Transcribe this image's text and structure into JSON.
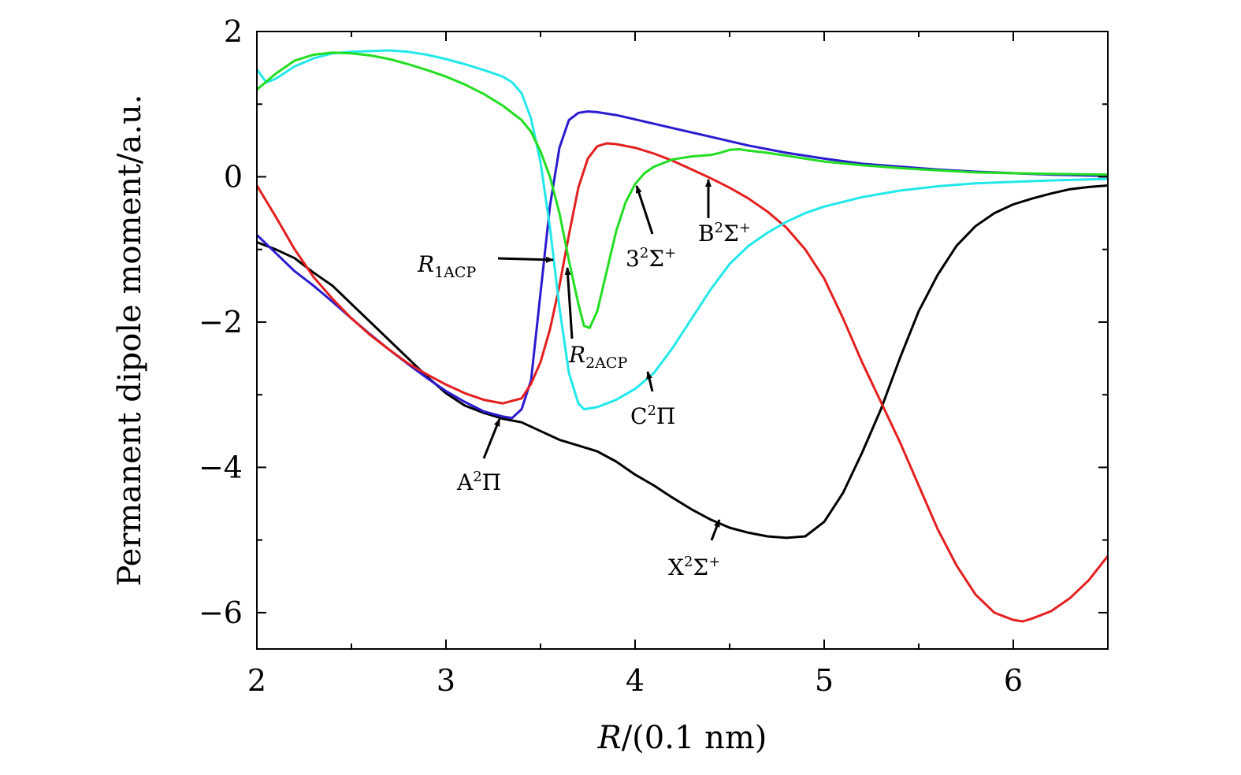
{
  "chart_data": {
    "type": "line",
    "title": "",
    "xlabel_var": "R",
    "xlabel_unit": "/(0.1 nm)",
    "ylabel": "Permanent dipole moment/a.u.",
    "xlim": [
      2,
      6.5
    ],
    "ylim": [
      -6.5,
      2
    ],
    "x_ticks": [
      "2",
      "3",
      "4",
      "5",
      "6"
    ],
    "y_ticks": [
      "2",
      "0",
      "−2",
      "−4",
      "−6"
    ],
    "grid": false,
    "legend": "none",
    "series": [
      {
        "name": "X²Σ⁺",
        "color": "#000000",
        "points": [
          [
            2.0,
            -0.9
          ],
          [
            2.1,
            -1.0
          ],
          [
            2.2,
            -1.12
          ],
          [
            2.3,
            -1.32
          ],
          [
            2.4,
            -1.5
          ],
          [
            2.5,
            -1.75
          ],
          [
            2.6,
            -2.0
          ],
          [
            2.7,
            -2.25
          ],
          [
            2.8,
            -2.5
          ],
          [
            2.9,
            -2.75
          ],
          [
            3.0,
            -2.98
          ],
          [
            3.1,
            -3.15
          ],
          [
            3.2,
            -3.25
          ],
          [
            3.3,
            -3.33
          ],
          [
            3.4,
            -3.38
          ],
          [
            3.5,
            -3.5
          ],
          [
            3.6,
            -3.62
          ],
          [
            3.7,
            -3.7
          ],
          [
            3.8,
            -3.78
          ],
          [
            3.9,
            -3.92
          ],
          [
            4.0,
            -4.1
          ],
          [
            4.1,
            -4.25
          ],
          [
            4.2,
            -4.42
          ],
          [
            4.3,
            -4.58
          ],
          [
            4.4,
            -4.72
          ],
          [
            4.5,
            -4.83
          ],
          [
            4.6,
            -4.9
          ],
          [
            4.7,
            -4.95
          ],
          [
            4.8,
            -4.97
          ],
          [
            4.9,
            -4.95
          ],
          [
            5.0,
            -4.75
          ],
          [
            5.1,
            -4.35
          ],
          [
            5.2,
            -3.8
          ],
          [
            5.3,
            -3.2
          ],
          [
            5.4,
            -2.5
          ],
          [
            5.5,
            -1.85
          ],
          [
            5.6,
            -1.35
          ],
          [
            5.7,
            -0.95
          ],
          [
            5.8,
            -0.68
          ],
          [
            5.9,
            -0.5
          ],
          [
            6.0,
            -0.38
          ],
          [
            6.1,
            -0.3
          ],
          [
            6.2,
            -0.23
          ],
          [
            6.3,
            -0.17
          ],
          [
            6.4,
            -0.14
          ],
          [
            6.5,
            -0.12
          ]
        ]
      },
      {
        "name": "A²Π",
        "color": "#2a1bd0",
        "points": [
          [
            2.0,
            -0.8
          ],
          [
            2.1,
            -1.05
          ],
          [
            2.2,
            -1.3
          ],
          [
            2.3,
            -1.5
          ],
          [
            2.4,
            -1.72
          ],
          [
            2.5,
            -1.95
          ],
          [
            2.6,
            -2.17
          ],
          [
            2.7,
            -2.38
          ],
          [
            2.8,
            -2.58
          ],
          [
            2.9,
            -2.77
          ],
          [
            3.0,
            -2.95
          ],
          [
            3.1,
            -3.1
          ],
          [
            3.2,
            -3.23
          ],
          [
            3.3,
            -3.3
          ],
          [
            3.35,
            -3.32
          ],
          [
            3.4,
            -3.2
          ],
          [
            3.45,
            -2.8
          ],
          [
            3.5,
            -1.6
          ],
          [
            3.55,
            -0.4
          ],
          [
            3.6,
            0.4
          ],
          [
            3.65,
            0.78
          ],
          [
            3.7,
            0.88
          ],
          [
            3.75,
            0.9
          ],
          [
            3.8,
            0.89
          ],
          [
            3.9,
            0.85
          ],
          [
            4.0,
            0.79
          ],
          [
            4.2,
            0.67
          ],
          [
            4.4,
            0.55
          ],
          [
            4.6,
            0.43
          ],
          [
            4.8,
            0.33
          ],
          [
            5.0,
            0.25
          ],
          [
            5.2,
            0.18
          ],
          [
            5.4,
            0.14
          ],
          [
            5.6,
            0.1
          ],
          [
            5.8,
            0.07
          ],
          [
            6.0,
            0.05
          ],
          [
            6.2,
            0.03
          ],
          [
            6.5,
            0.01
          ]
        ]
      },
      {
        "name": "B²Σ⁺",
        "color": "#e41f1f",
        "points": [
          [
            2.0,
            -0.12
          ],
          [
            2.1,
            -0.55
          ],
          [
            2.2,
            -1.0
          ],
          [
            2.3,
            -1.38
          ],
          [
            2.4,
            -1.68
          ],
          [
            2.5,
            -1.95
          ],
          [
            2.6,
            -2.18
          ],
          [
            2.7,
            -2.38
          ],
          [
            2.8,
            -2.57
          ],
          [
            2.9,
            -2.72
          ],
          [
            3.0,
            -2.86
          ],
          [
            3.1,
            -2.98
          ],
          [
            3.2,
            -3.07
          ],
          [
            3.3,
            -3.12
          ],
          [
            3.4,
            -3.05
          ],
          [
            3.45,
            -2.85
          ],
          [
            3.5,
            -2.55
          ],
          [
            3.55,
            -2.1
          ],
          [
            3.6,
            -1.5
          ],
          [
            3.65,
            -0.8
          ],
          [
            3.7,
            -0.15
          ],
          [
            3.75,
            0.25
          ],
          [
            3.8,
            0.42
          ],
          [
            3.85,
            0.46
          ],
          [
            3.9,
            0.45
          ],
          [
            4.0,
            0.4
          ],
          [
            4.1,
            0.32
          ],
          [
            4.2,
            0.22
          ],
          [
            4.3,
            0.1
          ],
          [
            4.4,
            -0.02
          ],
          [
            4.5,
            -0.15
          ],
          [
            4.6,
            -0.3
          ],
          [
            4.7,
            -0.48
          ],
          [
            4.8,
            -0.7
          ],
          [
            4.9,
            -1.0
          ],
          [
            5.0,
            -1.4
          ],
          [
            5.1,
            -1.95
          ],
          [
            5.2,
            -2.55
          ],
          [
            5.3,
            -3.1
          ],
          [
            5.4,
            -3.65
          ],
          [
            5.5,
            -4.25
          ],
          [
            5.6,
            -4.85
          ],
          [
            5.7,
            -5.35
          ],
          [
            5.8,
            -5.75
          ],
          [
            5.9,
            -6.0
          ],
          [
            6.0,
            -6.1
          ],
          [
            6.05,
            -6.12
          ],
          [
            6.1,
            -6.08
          ],
          [
            6.2,
            -5.98
          ],
          [
            6.3,
            -5.8
          ],
          [
            6.4,
            -5.55
          ],
          [
            6.5,
            -5.22
          ]
        ]
      },
      {
        "name": "C²Π",
        "color": "#22e8ea",
        "points": [
          [
            2.0,
            1.48
          ],
          [
            2.05,
            1.3
          ],
          [
            2.1,
            1.35
          ],
          [
            2.2,
            1.52
          ],
          [
            2.3,
            1.63
          ],
          [
            2.4,
            1.7
          ],
          [
            2.5,
            1.72
          ],
          [
            2.6,
            1.73
          ],
          [
            2.7,
            1.74
          ],
          [
            2.8,
            1.72
          ],
          [
            2.9,
            1.68
          ],
          [
            3.0,
            1.62
          ],
          [
            3.1,
            1.55
          ],
          [
            3.2,
            1.47
          ],
          [
            3.3,
            1.38
          ],
          [
            3.35,
            1.3
          ],
          [
            3.4,
            1.15
          ],
          [
            3.45,
            0.8
          ],
          [
            3.5,
            0.2
          ],
          [
            3.55,
            -0.7
          ],
          [
            3.6,
            -1.8
          ],
          [
            3.65,
            -2.7
          ],
          [
            3.7,
            -3.12
          ],
          [
            3.73,
            -3.2
          ],
          [
            3.8,
            -3.17
          ],
          [
            3.9,
            -3.07
          ],
          [
            4.0,
            -2.92
          ],
          [
            4.1,
            -2.7
          ],
          [
            4.2,
            -2.35
          ],
          [
            4.3,
            -1.95
          ],
          [
            4.4,
            -1.55
          ],
          [
            4.5,
            -1.2
          ],
          [
            4.6,
            -0.95
          ],
          [
            4.7,
            -0.77
          ],
          [
            4.8,
            -0.62
          ],
          [
            4.9,
            -0.5
          ],
          [
            5.0,
            -0.41
          ],
          [
            5.2,
            -0.28
          ],
          [
            5.4,
            -0.19
          ],
          [
            5.6,
            -0.13
          ],
          [
            5.8,
            -0.09
          ],
          [
            6.0,
            -0.07
          ],
          [
            6.2,
            -0.05
          ],
          [
            6.5,
            -0.03
          ]
        ]
      },
      {
        "name": "3²Σ⁺",
        "color": "#22de22",
        "points": [
          [
            2.0,
            1.2
          ],
          [
            2.1,
            1.42
          ],
          [
            2.2,
            1.6
          ],
          [
            2.3,
            1.68
          ],
          [
            2.4,
            1.71
          ],
          [
            2.5,
            1.7
          ],
          [
            2.6,
            1.67
          ],
          [
            2.7,
            1.62
          ],
          [
            2.8,
            1.55
          ],
          [
            2.9,
            1.47
          ],
          [
            3.0,
            1.38
          ],
          [
            3.1,
            1.27
          ],
          [
            3.2,
            1.14
          ],
          [
            3.3,
            0.98
          ],
          [
            3.4,
            0.78
          ],
          [
            3.45,
            0.62
          ],
          [
            3.5,
            0.35
          ],
          [
            3.55,
            0.0
          ],
          [
            3.6,
            -0.5
          ],
          [
            3.65,
            -1.15
          ],
          [
            3.7,
            -1.75
          ],
          [
            3.73,
            -2.05
          ],
          [
            3.76,
            -2.08
          ],
          [
            3.8,
            -1.85
          ],
          [
            3.85,
            -1.3
          ],
          [
            3.9,
            -0.75
          ],
          [
            3.95,
            -0.35
          ],
          [
            4.0,
            -0.1
          ],
          [
            4.05,
            0.05
          ],
          [
            4.1,
            0.14
          ],
          [
            4.2,
            0.24
          ],
          [
            4.3,
            0.28
          ],
          [
            4.4,
            0.3
          ],
          [
            4.45,
            0.33
          ],
          [
            4.5,
            0.37
          ],
          [
            4.55,
            0.38
          ],
          [
            4.6,
            0.36
          ],
          [
            4.7,
            0.33
          ],
          [
            4.8,
            0.29
          ],
          [
            5.0,
            0.21
          ],
          [
            5.2,
            0.16
          ],
          [
            5.4,
            0.12
          ],
          [
            5.6,
            0.09
          ],
          [
            5.8,
            0.06
          ],
          [
            6.0,
            0.05
          ],
          [
            6.2,
            0.04
          ],
          [
            6.5,
            0.03
          ]
        ]
      }
    ],
    "annotations": [
      {
        "id": "X",
        "base": "X",
        "sup": "2",
        "rest": "Σ",
        "sup2": "+"
      },
      {
        "id": "A",
        "base": "A",
        "sup": "2",
        "rest": "Π",
        "sup2": ""
      },
      {
        "id": "B",
        "base": "B",
        "sup": "2",
        "rest": "Σ",
        "sup2": "+"
      },
      {
        "id": "C",
        "base": "C",
        "sup": "2",
        "rest": "Π",
        "sup2": ""
      },
      {
        "id": "S3",
        "base": "3",
        "sup": "2",
        "rest": "Σ",
        "sup2": "+"
      },
      {
        "id": "R1",
        "base": "R",
        "sub": "1ACP"
      },
      {
        "id": "R2",
        "base": "R",
        "sub": "2ACP"
      }
    ]
  }
}
